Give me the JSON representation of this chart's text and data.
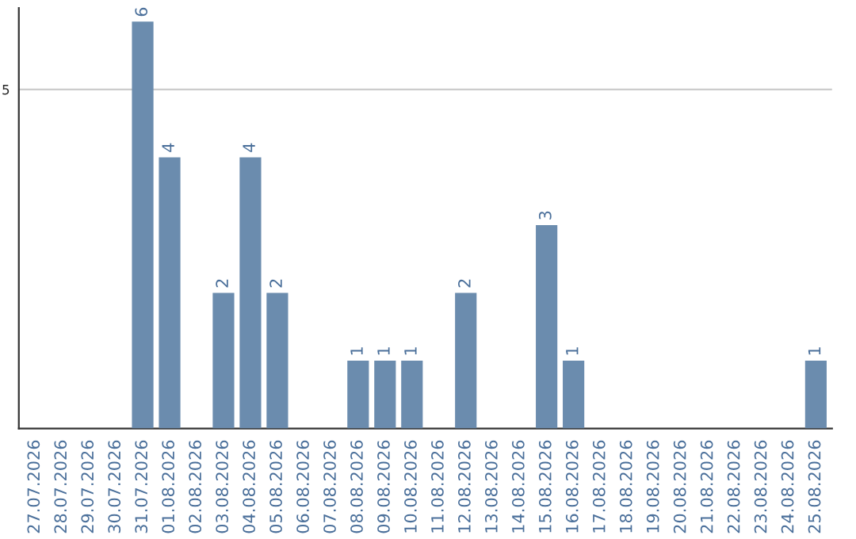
{
  "chart_data": {
    "type": "bar",
    "categories": [
      "27.07.2026",
      "28.07.2026",
      "29.07.2026",
      "30.07.2026",
      "31.07.2026",
      "01.08.2026",
      "02.08.2026",
      "03.08.2026",
      "04.08.2026",
      "05.08.2026",
      "06.08.2026",
      "07.08.2026",
      "08.08.2026",
      "09.08.2026",
      "10.08.2026",
      "11.08.2026",
      "12.08.2026",
      "13.08.2026",
      "14.08.2026",
      "15.08.2026",
      "16.08.2026",
      "17.08.2026",
      "18.08.2026",
      "19.08.2026",
      "20.08.2026",
      "21.08.2026",
      "22.08.2026",
      "23.08.2026",
      "24.08.2026",
      "25.08.2026"
    ],
    "values": [
      0,
      0,
      0,
      0,
      6,
      4,
      0,
      2,
      4,
      2,
      0,
      0,
      1,
      1,
      1,
      0,
      2,
      0,
      0,
      3,
      1,
      0,
      0,
      0,
      0,
      0,
      0,
      0,
      0,
      1
    ],
    "value_labels": [
      null,
      null,
      null,
      null,
      "6",
      "4",
      null,
      "2",
      "4",
      "2",
      null,
      null,
      "1",
      "1",
      "1",
      null,
      "2",
      null,
      null,
      "3",
      "1",
      null,
      null,
      null,
      null,
      null,
      null,
      null,
      null,
      "1"
    ],
    "color": "#6b8cae",
    "ylim": [
      0,
      6.2
    ],
    "yticks": [
      5
    ],
    "grid": "y"
  }
}
